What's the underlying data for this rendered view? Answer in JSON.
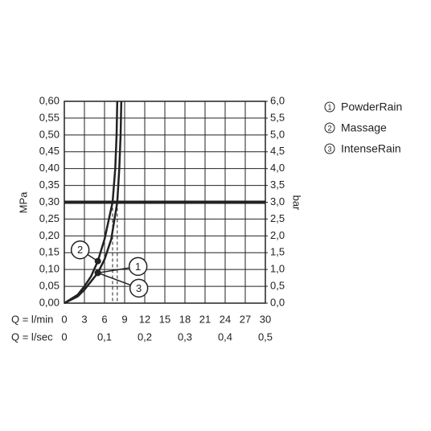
{
  "chart_data": {
    "type": "line",
    "y_label": "MPa",
    "y2_label": "bar",
    "x_label": "Q = l/min",
    "x2_label": "Q = l/sec",
    "xlim": [
      0,
      30
    ],
    "xticks": [
      0,
      3,
      6,
      9,
      12,
      15,
      18,
      21,
      24,
      27,
      30
    ],
    "x2lim": [
      0,
      0.5
    ],
    "x2ticks": [
      0,
      {
        "value": 0.1,
        "label": "0,1"
      },
      {
        "value": 0.2,
        "label": "0,2"
      },
      {
        "value": 0.3,
        "label": "0,3"
      },
      {
        "value": 0.4,
        "label": "0,4"
      },
      {
        "value": 0.5,
        "label": "0,5"
      }
    ],
    "ylim": [
      0,
      0.6
    ],
    "yticks": [
      {
        "value": 0,
        "label": "0,00"
      },
      {
        "value": 0.05,
        "label": "0,05"
      },
      {
        "value": 0.1,
        "label": "0,10"
      },
      {
        "value": 0.15,
        "label": "0,15"
      },
      {
        "value": 0.2,
        "label": "0,20"
      },
      {
        "value": 0.25,
        "label": "0,25"
      },
      {
        "value": 0.3,
        "label": "0,30"
      },
      {
        "value": 0.35,
        "label": "0,35"
      },
      {
        "value": 0.4,
        "label": "0,40"
      },
      {
        "value": 0.45,
        "label": "0,45"
      },
      {
        "value": 0.5,
        "label": "0,50"
      },
      {
        "value": 0.55,
        "label": "0,55"
      },
      {
        "value": 0.6,
        "label": "0,60"
      }
    ],
    "y2lim": [
      0,
      6
    ],
    "y2ticks": [
      {
        "value": 0,
        "label": "0,0"
      },
      {
        "value": 0.5,
        "label": "0,5"
      },
      {
        "value": 1,
        "label": "1,0"
      },
      {
        "value": 1.5,
        "label": "1,5"
      },
      {
        "value": 2,
        "label": "2,0"
      },
      {
        "value": 2.5,
        "label": "2,5"
      },
      {
        "value": 3,
        "label": "3,0"
      },
      {
        "value": 3.5,
        "label": "3,5"
      },
      {
        "value": 4,
        "label": "4,0"
      },
      {
        "value": 4.5,
        "label": "4,5"
      },
      {
        "value": 5,
        "label": "5,0"
      },
      {
        "value": 5.5,
        "label": "5,5"
      },
      {
        "value": 6,
        "label": "6,0"
      }
    ],
    "grid": true,
    "hline": 0.3,
    "dashed_x": [
      7.2,
      7.9
    ],
    "series": [
      {
        "color": "#222222",
        "x": [
          0,
          2,
          3,
          4,
          5,
          6,
          7.2,
          7.6,
          7.8,
          7.9
        ],
        "values": [
          0,
          0.025,
          0.05,
          0.08,
          0.125,
          0.19,
          0.3,
          0.4,
          0.5,
          0.6
        ]
      },
      {
        "color": "#222222",
        "x": [
          0,
          2,
          3,
          4,
          5,
          6,
          7,
          7.9,
          8.2,
          8.4,
          8.5
        ],
        "values": [
          0,
          0.02,
          0.04,
          0.065,
          0.09,
          0.13,
          0.19,
          0.3,
          0.4,
          0.5,
          0.6
        ]
      }
    ],
    "annotations": [
      {
        "text": 2,
        "x": 5,
        "y": 0.125
      },
      {
        "text": 1,
        "x": 5,
        "y": 0.09
      },
      {
        "text": 3,
        "x": 5,
        "y": 0.09
      }
    ],
    "legend": [
      {
        "number": 1,
        "label": "PowderRain"
      },
      {
        "number": 2,
        "label": "Massage"
      },
      {
        "number": 3,
        "label": "IntenseRain"
      }
    ]
  }
}
